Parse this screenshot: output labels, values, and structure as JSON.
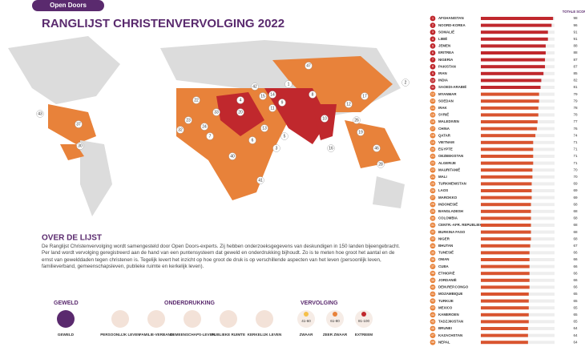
{
  "header": {
    "logo": "Open Doors",
    "title": "RANGLIJST CHRISTENVERVOLGING 2022"
  },
  "list": {
    "score_header": "TOTALE SCORE",
    "countries": [
      "AFGHANISTAN",
      "NOORD-KOREA",
      "SOMALIË",
      "LIBIË",
      "JEMEN",
      "ERITREA",
      "NIGERIA",
      "PAKISTAN",
      "IRAN",
      "INDIA",
      "SAOEDI-ARABIË",
      "MYANMAR",
      "SOEDAN",
      "IRAK",
      "SYRIË",
      "MALEDIVEN",
      "CHINA",
      "QATAR",
      "VIETNAM",
      "EGYPTE",
      "OEZBEKISTAN",
      "ALGERIJE",
      "MAURITANIË",
      "MALI",
      "TURKMENISTAN",
      "LAOS",
      "MAROKKO",
      "INDONESIË",
      "BANGLADESH",
      "COLOMBIA",
      "CENTR.-AFR. REPUBLIEK",
      "BURKINA FASO",
      "NIGER",
      "BHUTAN",
      "TUNESIË",
      "OMAN",
      "CUBA",
      "ETHIOPIË",
      "JORDANIË",
      "DEM.REP.CONGO",
      "MOZAMBIQUE",
      "TURKIJE",
      "MEXICO",
      "KAMEROEN",
      "TADZJIKISTAN",
      "BRUNEI",
      "KAZACHSTAN",
      "NEPAL"
    ],
    "scores": [
      98,
      96,
      91,
      91,
      88,
      88,
      87,
      87,
      85,
      82,
      81,
      79,
      79,
      78,
      78,
      77,
      76,
      74,
      71,
      71,
      71,
      71,
      70,
      70,
      69,
      69,
      69,
      68,
      68,
      68,
      68,
      68,
      68,
      67,
      66,
      66,
      66,
      66,
      66,
      66,
      65,
      65,
      65,
      65,
      65,
      64,
      64,
      64
    ],
    "ranks": [
      "1",
      "2",
      "3",
      "4",
      "5",
      "6",
      "7",
      "8",
      "9",
      "10",
      "11",
      "12",
      "13",
      "14",
      "15",
      "16",
      "17",
      "18",
      "19",
      "20",
      "21",
      "22",
      "23",
      "24",
      "25",
      "26",
      "27",
      "28",
      "29",
      "30",
      "31",
      "32",
      "33",
      "34",
      "35",
      "36",
      "37",
      "38",
      "39",
      "40",
      "41",
      "42",
      "43",
      "44",
      "45",
      "46",
      "47",
      "48"
    ]
  },
  "map": {
    "labels": [
      "47",
      "17",
      "2",
      "1",
      "9",
      "8",
      "10",
      "16",
      "42",
      "11",
      "5",
      "14",
      "15",
      "20",
      "6",
      "13",
      "3",
      "4",
      "22",
      "23",
      "24",
      "7",
      "32",
      "33",
      "40",
      "41",
      "43",
      "30",
      "37",
      "12",
      "26",
      "19",
      "46",
      "28"
    ]
  },
  "about": {
    "title": "OVER DE LIJST",
    "text": "De Ranglijst Christenvervolging wordt samengesteld door Open Doors-experts. Zij hebben onderzoeksgegevens van deskundigen in 150 landen bijeengebracht. Per land wordt vervolging geregistreerd aan de hand van een puntensysteem dat geweld en onderdrukking bijhoudt. Zo is te meten hoe groot het aantal en de ernst van gewelddaden tegen christenen is. Tegelijk levert het inzicht op hoe groot de druk is op verschillende aspecten van het leven (persoonlijk leven, familieverband, gemeenschapsleven, publieke ruimte en kerkelijk leven)."
  },
  "legend": {
    "geweld": "GEWELD",
    "onderdrukking": "ONDERDRUKKING",
    "vervolging": "VERVOLGING",
    "icons": [
      "GEWELD",
      "PERSOONLIJK LEVEN",
      "FAMILIE-VERBAND",
      "GEMEENSCHAPS-LEVEN",
      "PUBLIEKE RUIMTE",
      "KERKELIJK LEVEN"
    ],
    "levels": [
      "41-60",
      "61-80",
      "81-100"
    ],
    "level_names": [
      "ZWAAR",
      "ZEER ZWAAR",
      "EXTREEM"
    ]
  }
}
